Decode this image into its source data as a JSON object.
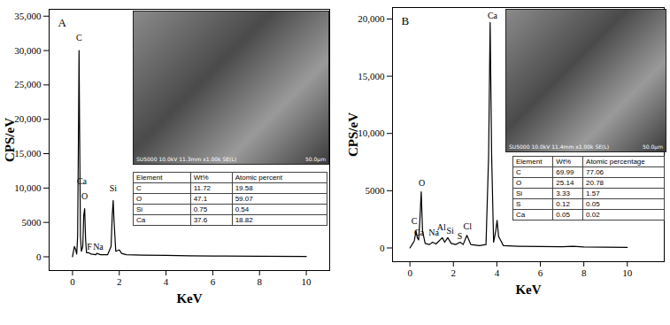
{
  "chart_data": [
    {
      "type": "line",
      "panel_label": "A",
      "x_label": "KeV",
      "y_label": "CPS/eV",
      "color": "#000000",
      "xlim": [
        -1,
        11
      ],
      "xticks": [
        0,
        2,
        4,
        6,
        8,
        10
      ],
      "ylim": [
        -2000,
        36000
      ],
      "yticks": [
        0,
        5000,
        {
          "value": 10000,
          "label": "10,000"
        },
        {
          "value": 15000,
          "label": "15,000"
        },
        {
          "value": 20000,
          "label": "20,000"
        },
        {
          "value": 25000,
          "label": "25,000"
        },
        {
          "value": 30000,
          "label": "30,000"
        },
        {
          "value": 35000,
          "label": "35,000"
        }
      ],
      "x": [
        0.0,
        0.08,
        0.12,
        0.18,
        0.22,
        0.26,
        0.28,
        0.3,
        0.34,
        0.38,
        0.44,
        0.48,
        0.52,
        0.56,
        0.6,
        0.68,
        0.8,
        1.0,
        1.04,
        1.2,
        1.5,
        1.65,
        1.7,
        1.74,
        1.78,
        1.85,
        2.0,
        2.1,
        2.3,
        3.0,
        4.0,
        5.0,
        6.0,
        8.0,
        10.0
      ],
      "values": [
        0,
        1500,
        1200,
        400,
        3000,
        20000,
        30000,
        20000,
        3000,
        800,
        1500,
        6000,
        7000,
        2500,
        600,
        600,
        400,
        300,
        500,
        300,
        300,
        1500,
        6000,
        8200,
        5000,
        800,
        1000,
        500,
        300,
        250,
        200,
        150,
        120,
        80,
        50
      ],
      "annotations": [
        {
          "text": "C",
          "x": 0.28,
          "y": 31800
        },
        {
          "text": "Ca",
          "x": 0.4,
          "y": 11000
        },
        {
          "text": "O",
          "x": 0.52,
          "y": 8800
        },
        {
          "text": "F",
          "x": 0.72,
          "y": 1500
        },
        {
          "text": "Na",
          "x": 1.1,
          "y": 1500
        },
        {
          "text": "Si",
          "x": 1.74,
          "y": 9900
        }
      ],
      "inset": {
        "image_text": "SU5000 10.0kV 11.3mm x1.00k SE(L)",
        "scale_bar": "50.0μm"
      },
      "table": {
        "header": [
          "Element",
          "Wt%",
          "Atomic percent"
        ],
        "rows": [
          [
            "C",
            "11.72",
            "19.58"
          ],
          [
            "O",
            "47.1",
            "59.07"
          ],
          [
            "Si",
            "0.75",
            "0.54"
          ],
          [
            "Ca",
            "37.6",
            "18.82"
          ]
        ]
      }
    },
    {
      "type": "line",
      "panel_label": "B",
      "x_label": "KeV",
      "y_label": "CPS/eV",
      "color": "#000000",
      "xlim": [
        -0.8,
        11.7
      ],
      "xticks": [
        0,
        2,
        4,
        6,
        8,
        10
      ],
      "ylim": [
        -1200,
        21000
      ],
      "yticks": [
        0,
        5000,
        {
          "value": 10000,
          "label": "10,000"
        },
        {
          "value": 15000,
          "label": "15,000"
        },
        {
          "value": 20000,
          "label": "20,000"
        }
      ],
      "x": [
        0.0,
        0.1,
        0.2,
        0.28,
        0.34,
        0.4,
        0.46,
        0.52,
        0.58,
        0.7,
        0.9,
        1.04,
        1.2,
        1.49,
        1.6,
        1.74,
        1.9,
        2.1,
        2.31,
        2.45,
        2.62,
        2.8,
        3.2,
        3.5,
        3.62,
        3.69,
        3.76,
        3.85,
        3.95,
        4.01,
        4.08,
        4.3,
        5.0,
        6.0,
        7.0,
        7.5,
        8.0,
        9.0,
        10.0
      ],
      "values": [
        0,
        300,
        600,
        1500,
        900,
        700,
        2500,
        4900,
        1500,
        400,
        300,
        500,
        350,
        900,
        500,
        900,
        400,
        300,
        500,
        300,
        1100,
        300,
        200,
        300,
        8000,
        19700,
        8000,
        500,
        1500,
        2400,
        1000,
        200,
        150,
        120,
        100,
        150,
        80,
        60,
        50
      ],
      "annotations": [
        {
          "text": "C",
          "x": 0.2,
          "y": 2300
        },
        {
          "text": "Ca",
          "x": 0.42,
          "y": 1300
        },
        {
          "text": "O",
          "x": 0.55,
          "y": 5700
        },
        {
          "text": "Na",
          "x": 1.1,
          "y": 1300
        },
        {
          "text": "Al",
          "x": 1.45,
          "y": 1800
        },
        {
          "text": "Si",
          "x": 1.85,
          "y": 1500
        },
        {
          "text": "S",
          "x": 2.3,
          "y": 1000
        },
        {
          "text": "Cl",
          "x": 2.65,
          "y": 1900
        },
        {
          "text": "Ca",
          "x": 3.8,
          "y": 20300
        }
      ],
      "inset": {
        "image_text": "SU5000 10.0kV 11.4mm x1.00k SE(L)",
        "scale_bar": "50.0μm"
      },
      "table": {
        "header": [
          "Element",
          "Wt%",
          "Atomic percentage"
        ],
        "rows": [
          [
            "C",
            "69.99",
            "77.06"
          ],
          [
            "O",
            "25.14",
            "20.78"
          ],
          [
            "Si",
            "3.33",
            "1.57"
          ],
          [
            "S",
            "0.12",
            "0.05"
          ],
          [
            "Ca",
            "0.05",
            "0.02"
          ]
        ]
      }
    }
  ]
}
